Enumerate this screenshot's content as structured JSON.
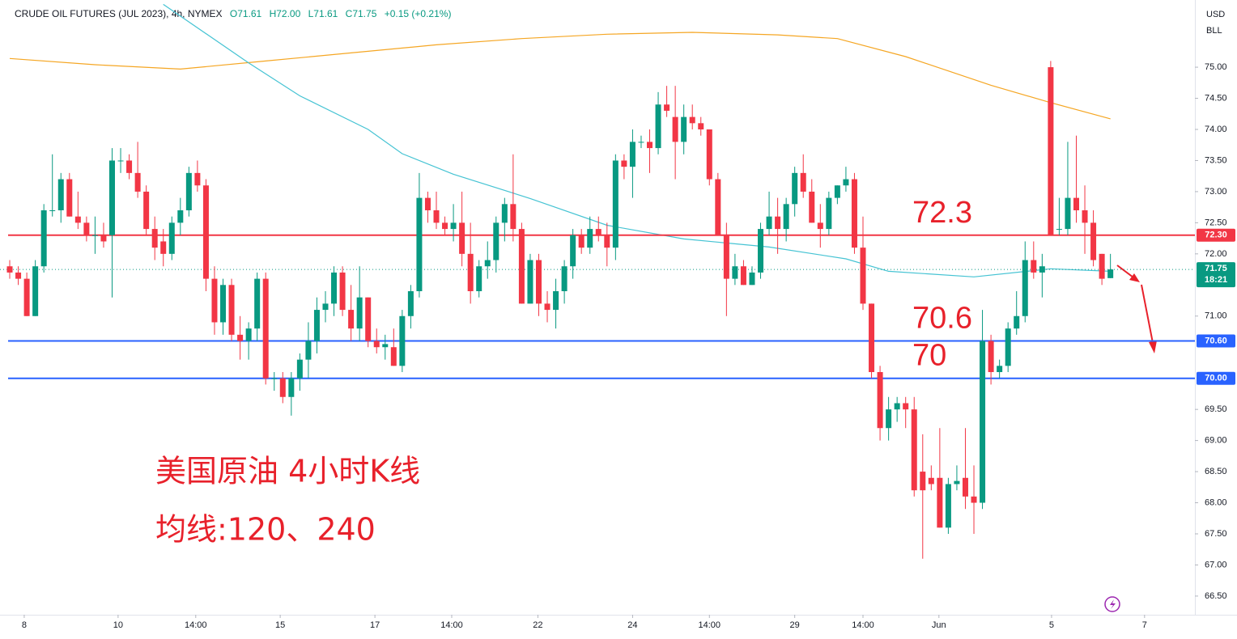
{
  "chart_data": {
    "type": "candlestick",
    "title": "CRUDE OIL FUTURES (JUL 2023), 4h, NYMEX",
    "header_values": [
      "O71.61",
      "H72.00",
      "L71.61",
      "C71.75",
      "+0.15 (+0.21%)"
    ],
    "currency": "USD",
    "unit": "BLL",
    "up_color": "#089981",
    "down_color": "#f23645",
    "series": [
      {
        "open": [
          71.8,
          71.7,
          71.6,
          71.0,
          71.8,
          72.7,
          72.7,
          73.2,
          72.6,
          72.5,
          72.3,
          72.3,
          72.3,
          73.5,
          73.5,
          73.3,
          73.0,
          72.4,
          72.2,
          72.0,
          72.5,
          72.7,
          73.3,
          73.1,
          71.6,
          70.9,
          71.5,
          70.7,
          70.6,
          70.8,
          71.6,
          70.0,
          70.0,
          69.7,
          70.0,
          70.3,
          70.6,
          71.1,
          71.2,
          71.7,
          71.1,
          70.8,
          71.3,
          70.6,
          70.5,
          70.5,
          70.2,
          71.0,
          71.4,
          72.9,
          72.7,
          72.5,
          72.4,
          72.5,
          72.0,
          71.4,
          71.8,
          71.9,
          72.5,
          72.8,
          72.4,
          71.2,
          71.9,
          71.2,
          71.1,
          71.4,
          71.8,
          72.3,
          72.1,
          72.4,
          72.3,
          72.1,
          73.5,
          73.4,
          73.8,
          73.8,
          73.7,
          74.4,
          74.2,
          73.8,
          74.2,
          74.1,
          74.0,
          73.2,
          72.3,
          71.6,
          71.8,
          71.5,
          71.7,
          72.4,
          72.6,
          72.4,
          72.8,
          73.3,
          73.0,
          72.5,
          72.4,
          72.9,
          73.1,
          73.2,
          72.1,
          71.2,
          70.1,
          69.2,
          69.5,
          69.6,
          69.5,
          68.5,
          68.4,
          68.4,
          67.6,
          68.3,
          68.4,
          68.1,
          68.0,
          70.6,
          70.1,
          70.2,
          70.8,
          71.0,
          71.9,
          71.7,
          75.0,
          72.4,
          72.4,
          72.9,
          72.7,
          72.5,
          72.0,
          71.61
        ],
        "high": [
          71.9,
          71.8,
          71.7,
          71.9,
          72.8,
          73.6,
          73.3,
          73.3,
          73.0,
          72.6,
          72.6,
          72.5,
          73.7,
          73.7,
          73.6,
          73.8,
          73.1,
          72.6,
          72.4,
          72.6,
          72.9,
          73.4,
          73.5,
          73.2,
          71.8,
          71.6,
          71.6,
          71.0,
          70.9,
          71.7,
          71.7,
          70.1,
          70.1,
          70.1,
          70.4,
          70.9,
          71.3,
          71.4,
          71.8,
          71.8,
          71.5,
          71.8,
          71.3,
          70.8,
          70.7,
          70.8,
          71.1,
          71.5,
          73.3,
          73.0,
          73.0,
          72.6,
          72.8,
          73.0,
          72.5,
          71.9,
          72.2,
          72.6,
          72.9,
          73.6,
          72.5,
          72.0,
          72.0,
          71.4,
          71.6,
          71.9,
          72.4,
          72.4,
          72.6,
          72.6,
          72.5,
          73.6,
          73.6,
          74.0,
          73.9,
          74.0,
          74.6,
          74.7,
          74.7,
          74.4,
          74.4,
          74.2,
          74.0,
          73.3,
          72.5,
          72.0,
          71.9,
          71.8,
          72.5,
          73.0,
          72.9,
          72.9,
          73.4,
          73.6,
          73.2,
          72.8,
          73.0,
          73.1,
          73.4,
          73.3,
          72.6,
          71.2,
          70.2,
          69.7,
          69.7,
          69.7,
          69.7,
          69.1,
          68.6,
          69.2,
          68.4,
          68.6,
          69.2,
          68.6,
          71.1,
          70.7,
          70.3,
          70.9,
          71.4,
          72.2,
          72.2,
          72.0,
          75.1,
          72.9,
          73.8,
          73.9,
          73.1,
          72.7,
          72.0,
          72.0
        ],
        "low": [
          71.6,
          71.5,
          71.0,
          71.0,
          71.7,
          72.6,
          72.5,
          72.6,
          72.4,
          72.2,
          72.0,
          72.1,
          71.3,
          73.3,
          73.2,
          72.9,
          72.3,
          71.9,
          71.8,
          71.9,
          72.3,
          72.6,
          73.0,
          71.4,
          70.7,
          70.7,
          70.6,
          70.3,
          70.3,
          70.6,
          69.9,
          69.8,
          69.6,
          69.4,
          69.8,
          70.0,
          70.4,
          70.9,
          71.0,
          71.0,
          70.6,
          70.6,
          70.5,
          70.4,
          70.3,
          70.2,
          70.1,
          70.8,
          71.3,
          72.5,
          72.4,
          72.3,
          72.2,
          71.8,
          71.2,
          71.3,
          71.6,
          71.7,
          72.2,
          72.2,
          71.2,
          71.2,
          71.0,
          70.9,
          70.8,
          71.2,
          71.6,
          72.0,
          72.0,
          72.2,
          71.8,
          71.9,
          73.2,
          72.9,
          73.7,
          73.3,
          73.6,
          74.2,
          73.2,
          73.6,
          74.0,
          73.9,
          73.1,
          72.3,
          71.0,
          71.5,
          71.5,
          71.5,
          71.6,
          72.3,
          72.0,
          72.2,
          72.6,
          72.9,
          72.5,
          72.1,
          72.3,
          72.8,
          73.0,
          72.0,
          71.1,
          70.0,
          69.0,
          69.0,
          69.3,
          69.2,
          68.1,
          67.1,
          68.2,
          67.6,
          67.5,
          68.2,
          67.9,
          67.5,
          67.9,
          69.9,
          70.0,
          70.1,
          70.7,
          70.9,
          71.6,
          71.3,
          72.3,
          72.3,
          72.3,
          72.5,
          72.0,
          71.8,
          71.5,
          71.61
        ],
        "close": [
          71.7,
          71.6,
          71.0,
          71.8,
          72.7,
          72.7,
          73.2,
          72.6,
          72.5,
          72.3,
          72.3,
          72.2,
          73.5,
          73.5,
          73.3,
          73.0,
          72.4,
          72.1,
          72.0,
          72.5,
          72.7,
          73.3,
          73.1,
          71.6,
          70.9,
          71.5,
          70.7,
          70.6,
          70.8,
          71.6,
          70.0,
          70.0,
          69.7,
          70.0,
          70.3,
          70.6,
          71.1,
          71.2,
          71.7,
          71.1,
          70.8,
          71.3,
          70.6,
          70.5,
          70.55,
          70.2,
          71.0,
          71.4,
          72.9,
          72.7,
          72.5,
          72.4,
          72.5,
          72.0,
          71.4,
          71.8,
          71.9,
          72.5,
          72.8,
          72.4,
          71.2,
          71.9,
          71.2,
          71.1,
          71.4,
          71.8,
          72.3,
          72.1,
          72.4,
          72.3,
          72.1,
          73.5,
          73.4,
          73.8,
          73.8,
          73.7,
          74.4,
          74.3,
          73.8,
          74.2,
          74.1,
          74.0,
          73.2,
          72.3,
          71.6,
          71.8,
          71.5,
          71.7,
          72.4,
          72.6,
          72.4,
          72.8,
          73.3,
          73.0,
          72.5,
          72.4,
          72.9,
          73.1,
          73.2,
          72.1,
          71.2,
          70.1,
          69.2,
          69.5,
          69.6,
          69.5,
          68.2,
          68.2,
          68.3,
          67.6,
          68.3,
          68.35,
          68.1,
          68.0,
          70.6,
          70.1,
          70.2,
          70.8,
          71.0,
          71.9,
          71.7,
          71.8,
          72.3,
          72.4,
          72.9,
          72.7,
          72.5,
          71.9,
          71.6,
          71.75
        ]
      }
    ],
    "overlays": [
      {
        "type": "line",
        "color": "#f5a623",
        "x": [
          0,
          10,
          20,
          30,
          40,
          50,
          60,
          70,
          80,
          90,
          97,
          105,
          115,
          122,
          129
        ],
        "values": [
          75.14,
          75.04,
          74.97,
          75.1,
          75.23,
          75.36,
          75.46,
          75.53,
          75.56,
          75.52,
          75.46,
          75.17,
          74.71,
          74.43,
          74.17
        ]
      },
      {
        "type": "line",
        "color": "#45c3d3",
        "x": [
          18,
          28,
          34,
          42,
          46,
          52,
          61,
          70,
          79,
          89,
          98,
          103,
          113,
          122,
          129
        ],
        "values": [
          76.01,
          75.07,
          74.54,
          74.0,
          73.61,
          73.28,
          72.89,
          72.46,
          72.24,
          72.11,
          71.92,
          71.72,
          71.63,
          71.76,
          71.72
        ]
      }
    ],
    "hlines": [
      {
        "value": 72.3,
        "label": "72.3",
        "axis_label": "72.30",
        "color": "#f23645"
      },
      {
        "value": 70.6,
        "label": "70.6",
        "axis_label": "70.60",
        "color": "#2962ff"
      },
      {
        "value": 70.0,
        "label": "70",
        "axis_label": "70.00",
        "color": "#2962ff"
      }
    ],
    "last_price": {
      "value": 71.75,
      "label": "71.75",
      "countdown": "18:21",
      "color": "#089981"
    },
    "annotations": [
      "美国原油 4小时K线",
      "均线:120、240"
    ],
    "ylim": [
      66.2,
      76.08
    ],
    "yticks": [
      {
        "value": 75,
        "label": "75.00"
      },
      {
        "value": 74.5,
        "label": "74.50"
      },
      {
        "value": 74,
        "label": "74.00"
      },
      {
        "value": 73.5,
        "label": "73.50"
      },
      {
        "value": 73,
        "label": "73.00"
      },
      {
        "value": 72.5,
        "label": "72.50"
      },
      {
        "value": 72,
        "label": "72.00"
      },
      {
        "value": 71,
        "label": "71.00"
      },
      {
        "value": 69.5,
        "label": "69.50"
      },
      {
        "value": 69,
        "label": "69.00"
      },
      {
        "value": 68.5,
        "label": "68.50"
      },
      {
        "value": 68,
        "label": "68.00"
      },
      {
        "value": 67.5,
        "label": "67.50"
      },
      {
        "value": 67,
        "label": "67.00"
      },
      {
        "value": 66.5,
        "label": "66.50"
      }
    ],
    "xlim": [
      -1.14,
      138.9
    ],
    "xticks": [
      {
        "value": 1.7,
        "label": "8"
      },
      {
        "value": 12.7,
        "label": "10"
      },
      {
        "value": 21.8,
        "label": "14:00"
      },
      {
        "value": 31.7,
        "label": "15"
      },
      {
        "value": 42.8,
        "label": "17"
      },
      {
        "value": 51.8,
        "label": "14:00"
      },
      {
        "value": 61.9,
        "label": "22"
      },
      {
        "value": 73.0,
        "label": "24"
      },
      {
        "value": 82.0,
        "label": "14:00"
      },
      {
        "value": 92.0,
        "label": "29"
      },
      {
        "value": 100.0,
        "label": "14:00"
      },
      {
        "value": 108.9,
        "label": "Jun"
      },
      {
        "value": 122.1,
        "label": "5"
      },
      {
        "value": 133.0,
        "label": "7"
      }
    ]
  }
}
